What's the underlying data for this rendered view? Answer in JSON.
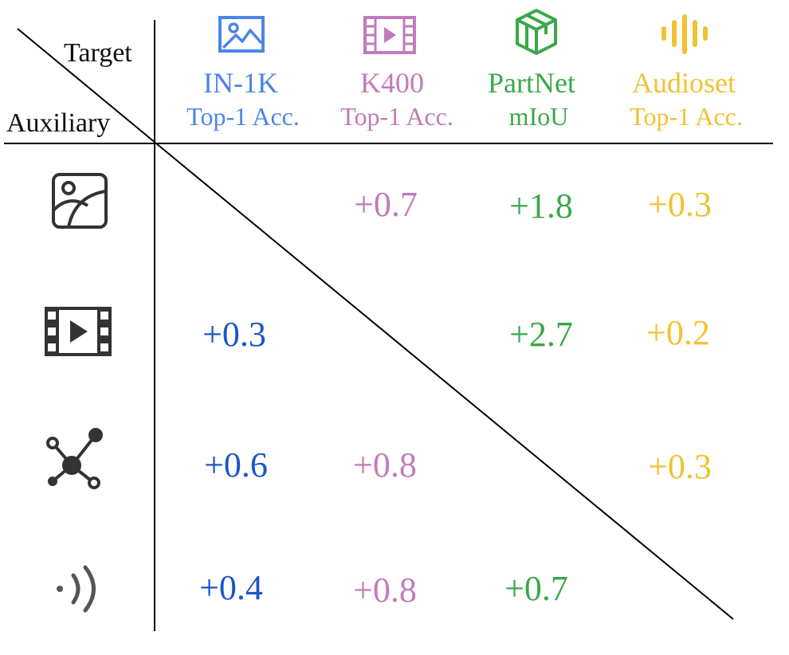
{
  "corner": {
    "target_label": "Target",
    "auxiliary_label": "Auxiliary"
  },
  "columns": [
    {
      "name": "IN-1K",
      "metric": "Top-1 Acc.",
      "color": "#4a86e8",
      "icon": "image-icon"
    },
    {
      "name": "K400",
      "metric": "Top-1 Acc.",
      "color": "#c27bba",
      "icon": "video-film-icon"
    },
    {
      "name": "PartNet",
      "metric": "mIoU",
      "color": "#3aa84a",
      "icon": "3d-cubes-icon"
    },
    {
      "name": "Audioset",
      "metric": "Top-1 Acc.",
      "color": "#f1c232",
      "icon": "audio-waveform-icon"
    }
  ],
  "rows": [
    {
      "icon": "image-icon",
      "cells": [
        "",
        "+0.7",
        "+1.8",
        "+0.3"
      ]
    },
    {
      "icon": "video-film-icon",
      "cells": [
        "+0.3",
        "",
        "+2.7",
        "+0.2"
      ]
    },
    {
      "icon": "point-cloud-icon",
      "cells": [
        "+0.6",
        "+0.8",
        "",
        "+0.3"
      ]
    },
    {
      "icon": "audio-signal-icon",
      "cells": [
        "+0.4",
        "+0.8",
        "+0.7",
        ""
      ]
    }
  ],
  "cell_colors": [
    "#1a56c8",
    "#c27bba",
    "#3aa84a",
    "#f1c232"
  ],
  "icon_color": "#333333"
}
